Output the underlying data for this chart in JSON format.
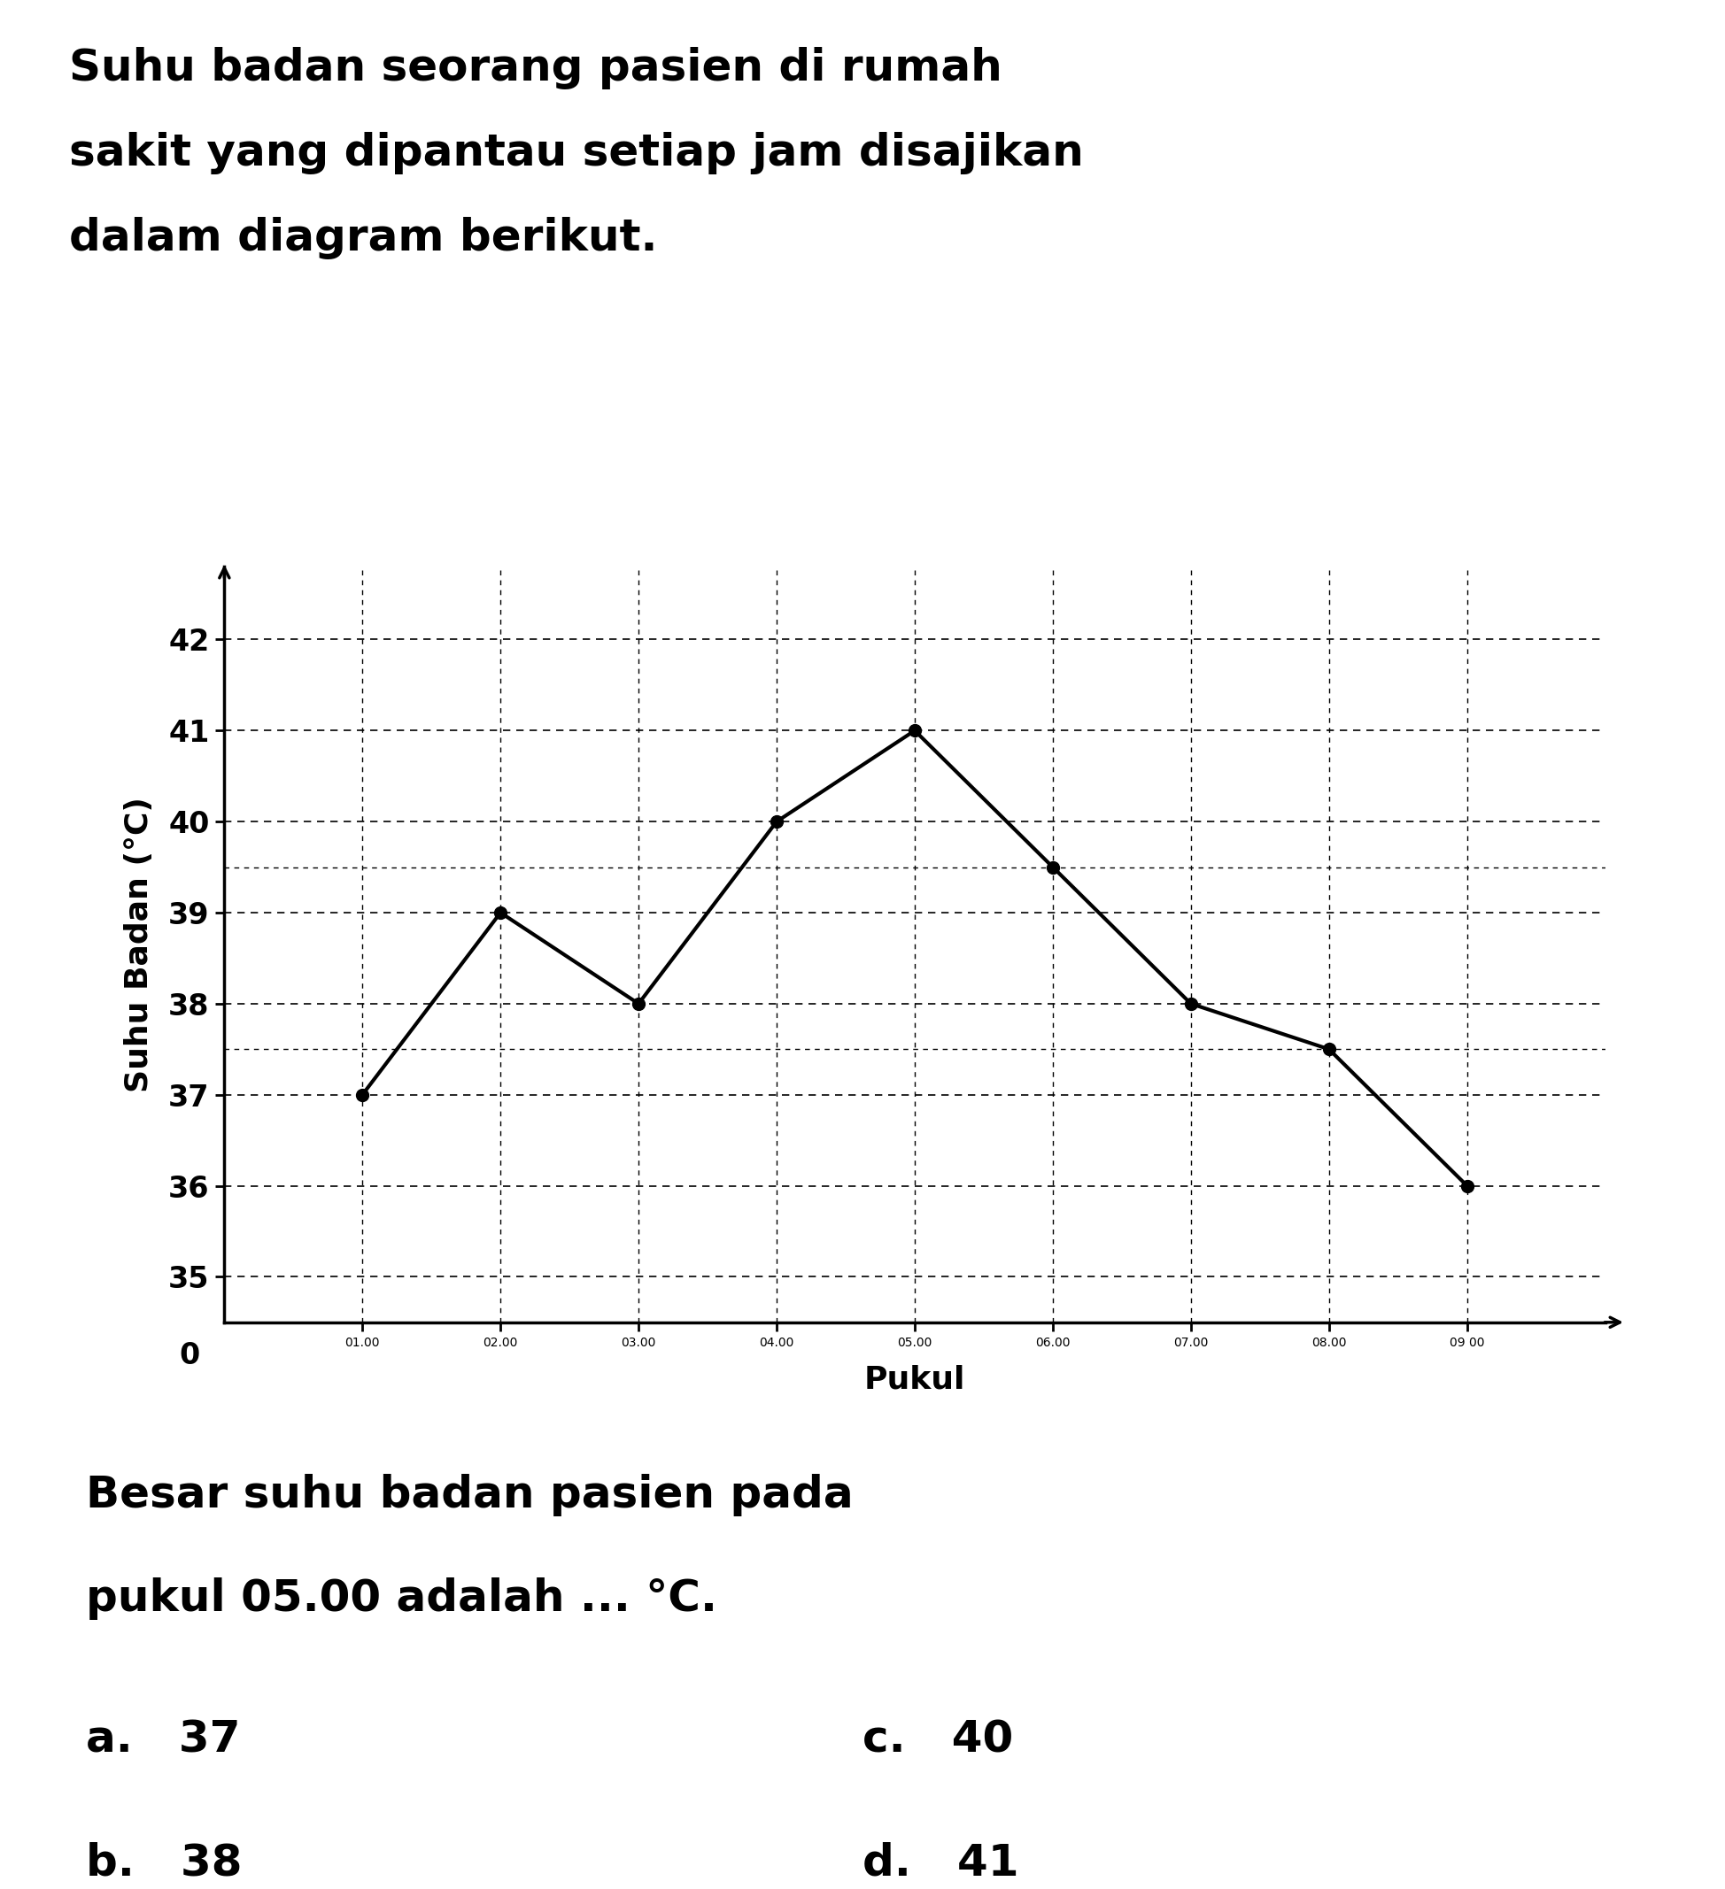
{
  "title_line1": "Suhu badan seorang pasien di rumah",
  "title_line2": "sakit yang dipantau setiap jam disajikan",
  "title_line3": "dalam diagram berikut.",
  "xlabel": "Pukul",
  "ylabel": "Suhu Badan (°C)",
  "x_labels": [
    "01.00",
    "02.00",
    "03.00",
    "04.00",
    "05.00",
    "06.00",
    "07.00",
    "08.00",
    "09 00"
  ],
  "x_values": [
    1,
    2,
    3,
    4,
    5,
    6,
    7,
    8,
    9
  ],
  "y_values": [
    37,
    39,
    38,
    40,
    41,
    39.5,
    38,
    37.5,
    36
  ],
  "ylim_min": 0,
  "ylim_max": 43,
  "xlim_min": 0,
  "xlim_max": 10,
  "y_ticks_main": [
    35,
    36,
    37,
    38,
    39,
    40,
    41,
    42
  ],
  "y_tick_zero": 0,
  "line_color": "#000000",
  "marker_color": "#000000",
  "question_line1": "Besar suhu badan pasien pada",
  "question_line2": "pukul 05.00 adalah ... °C.",
  "choice_a": "a.   37",
  "choice_b": "b.   38",
  "choice_c": "c.   40",
  "choice_d": "d.   41",
  "title_fontsize": 36,
  "axis_label_fontsize": 26,
  "tick_fontsize": 24,
  "question_fontsize": 36,
  "choice_fontsize": 36,
  "background_color": "#ffffff"
}
